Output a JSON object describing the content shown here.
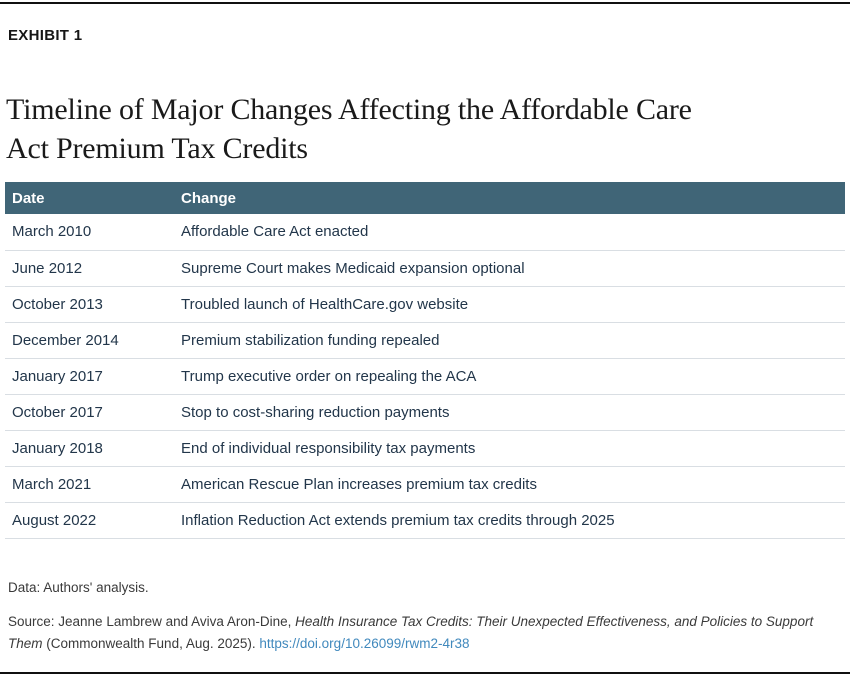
{
  "exhibit_label": "EXHIBIT 1",
  "title_lines": [
    "Timeline of Major Changes Affecting the Affordable Care",
    "Act Premium Tax Credits"
  ],
  "table": {
    "columns": [
      "Date",
      "Change"
    ],
    "rows": [
      {
        "date": "March 2010",
        "change": "Affordable Care Act enacted"
      },
      {
        "date": "June 2012",
        "change": "Supreme Court makes Medicaid expansion optional"
      },
      {
        "date": "October 2013",
        "change": "Troubled launch of HealthCare.gov website"
      },
      {
        "date": "December 2014",
        "change": "Premium stabilization funding repealed"
      },
      {
        "date": "January 2017",
        "change": "Trump executive order on repealing the ACA"
      },
      {
        "date": "October 2017",
        "change": "Stop to cost-sharing reduction payments"
      },
      {
        "date": "January 2018",
        "change": "End of individual responsibility tax payments"
      },
      {
        "date": "March 2021",
        "change": "American Rescue Plan increases premium tax credits"
      },
      {
        "date": "August 2022",
        "change": "Inflation Reduction Act extends premium tax credits through 2025"
      }
    ]
  },
  "notes": {
    "data_note": "Data: Authors' analysis.",
    "source_prefix": "Source: Jeanne Lambrew and Aviva Aron-Dine, ",
    "source_title_italic": "Health Insurance Tax Credits: Their Unexpected Effectiveness, and Policies to Support Them",
    "source_suffix": " (Commonwealth Fund, Aug. 2025). ",
    "source_link": "https://doi.org/10.26099/rwm2-4r38"
  },
  "colors": {
    "header_bg": "#406577",
    "header_text": "#ffffff",
    "body_text": "#22364a",
    "row_divider": "#d9dee3",
    "link": "#4189bd",
    "rule": "#101010"
  }
}
